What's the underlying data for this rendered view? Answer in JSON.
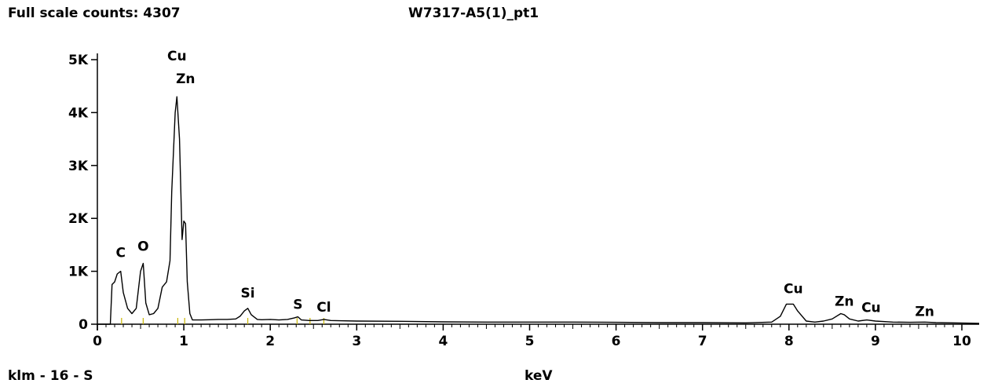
{
  "header": {
    "full_scale": "Full scale counts: 4307",
    "sample_title": "W7317-A5(1)_pt1"
  },
  "footer": {
    "left_label": "klm - 16 - S"
  },
  "chart_data": {
    "type": "line",
    "title": "W7317-A5(1)_pt1",
    "xlabel": "keV",
    "ylabel": "",
    "xlim": [
      0,
      10.2
    ],
    "ylim": [
      0,
      5000
    ],
    "x_ticks": [
      0,
      1,
      2,
      3,
      4,
      5,
      6,
      7,
      8,
      9,
      10
    ],
    "x_tick_labels": [
      "0",
      "1",
      "2",
      "3",
      "4",
      "5",
      "6",
      "7",
      "8",
      "9",
      "10"
    ],
    "y_ticks": [
      0,
      1000,
      2000,
      3000,
      4000,
      5000
    ],
    "y_tick_labels": [
      "0",
      "1K",
      "2K",
      "3K",
      "4K",
      "5K"
    ],
    "grid": false,
    "line_color": "#000000",
    "marker_color": "#c8b400",
    "series": [
      {
        "x": [
          0.0,
          0.15,
          0.17,
          0.2,
          0.23,
          0.27,
          0.3,
          0.35,
          0.4,
          0.45,
          0.5,
          0.53,
          0.56,
          0.6,
          0.65,
          0.7,
          0.75,
          0.8,
          0.84,
          0.86,
          0.9,
          0.92,
          0.95,
          0.98,
          1.0,
          1.02,
          1.04,
          1.07,
          1.1,
          1.15,
          1.2,
          1.3,
          1.4,
          1.5,
          1.6,
          1.65,
          1.7,
          1.74,
          1.78,
          1.85,
          1.9,
          2.0,
          2.1,
          2.2,
          2.28,
          2.32,
          2.36,
          2.45,
          2.55,
          2.62,
          2.7,
          2.8,
          3.0,
          3.5,
          4.0,
          4.5,
          5.0,
          5.5,
          6.0,
          6.5,
          7.0,
          7.5,
          7.8,
          7.9,
          7.97,
          8.05,
          8.1,
          8.2,
          8.3,
          8.4,
          8.5,
          8.6,
          8.64,
          8.7,
          8.8,
          8.9,
          9.0,
          9.2,
          9.4,
          9.57,
          9.7,
          9.9,
          10.1,
          10.2
        ],
        "y": [
          0,
          0,
          750,
          800,
          950,
          1000,
          600,
          300,
          200,
          300,
          1000,
          1150,
          400,
          180,
          200,
          300,
          700,
          800,
          1200,
          2500,
          4000,
          4300,
          3500,
          1600,
          1950,
          1900,
          800,
          200,
          80,
          80,
          80,
          85,
          90,
          90,
          100,
          150,
          250,
          300,
          180,
          90,
          85,
          90,
          80,
          90,
          120,
          140,
          80,
          70,
          70,
          90,
          70,
          65,
          60,
          55,
          45,
          40,
          40,
          40,
          35,
          30,
          30,
          25,
          40,
          150,
          380,
          380,
          250,
          60,
          40,
          60,
          100,
          200,
          180,
          100,
          60,
          80,
          60,
          40,
          35,
          40,
          30,
          25,
          20,
          15
        ]
      }
    ],
    "peak_labels": [
      {
        "text": "C",
        "x": 0.27,
        "y": 1000
      },
      {
        "text": "O",
        "x": 0.53,
        "y": 1150
      },
      {
        "text": "Cu",
        "x": 0.92,
        "y": 4300
      },
      {
        "text": "Zn",
        "x": 1.02,
        "y": 4300
      },
      {
        "text": "Si",
        "x": 1.74,
        "y": 300
      },
      {
        "text": "S",
        "x": 2.32,
        "y": 140
      },
      {
        "text": "Cl",
        "x": 2.62,
        "y": 90
      },
      {
        "text": "Cu",
        "x": 8.05,
        "y": 380
      },
      {
        "text": "Zn",
        "x": 8.64,
        "y": 200
      },
      {
        "text": "Cu",
        "x": 8.95,
        "y": 80
      },
      {
        "text": "Zn",
        "x": 9.57,
        "y": 40
      }
    ],
    "peak_markers": [
      0.28,
      0.53,
      0.93,
      1.01,
      1.74,
      2.31,
      2.46,
      2.62
    ]
  }
}
